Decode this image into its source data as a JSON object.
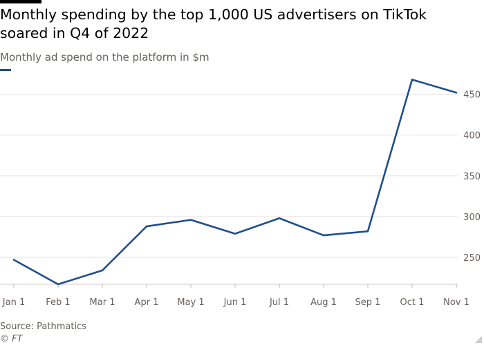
{
  "header": {
    "title": "Monthly spending by the top 1,000 US advertisers on TikTok soared in Q4 of 2022",
    "subtitle": "Monthly ad spend on the platform in $m"
  },
  "footer": {
    "source": "Source: Pathmatics",
    "copyright": "© FT"
  },
  "colors": {
    "line": "#1f4e8c",
    "grid": "#e6e3e0",
    "axis_text": "#66605c",
    "accent_rule": "#000000"
  },
  "icons": {
    "resize": "resize-corner-icon"
  },
  "chart_data": {
    "type": "line",
    "title": "Monthly spending by the top 1,000 US advertisers on TikTok soared in Q4 of 2022",
    "subtitle": "Monthly ad spend on the platform in $m",
    "categories": [
      "Jan 1",
      "Feb 1",
      "Mar 1",
      "Apr 1",
      "May 1",
      "Jun 1",
      "Jul 1",
      "Aug 1",
      "Sep 1",
      "Oct 1",
      "Nov 1"
    ],
    "series": [
      {
        "values": [
          247,
          217,
          234,
          288,
          296,
          279,
          298,
          277,
          282,
          468,
          452
        ]
      }
    ],
    "ylim": [
      217,
      470
    ],
    "yticks": [
      250,
      300,
      350,
      400,
      450
    ],
    "grid": true,
    "y_axis_side": "right",
    "legend": "top-left"
  }
}
